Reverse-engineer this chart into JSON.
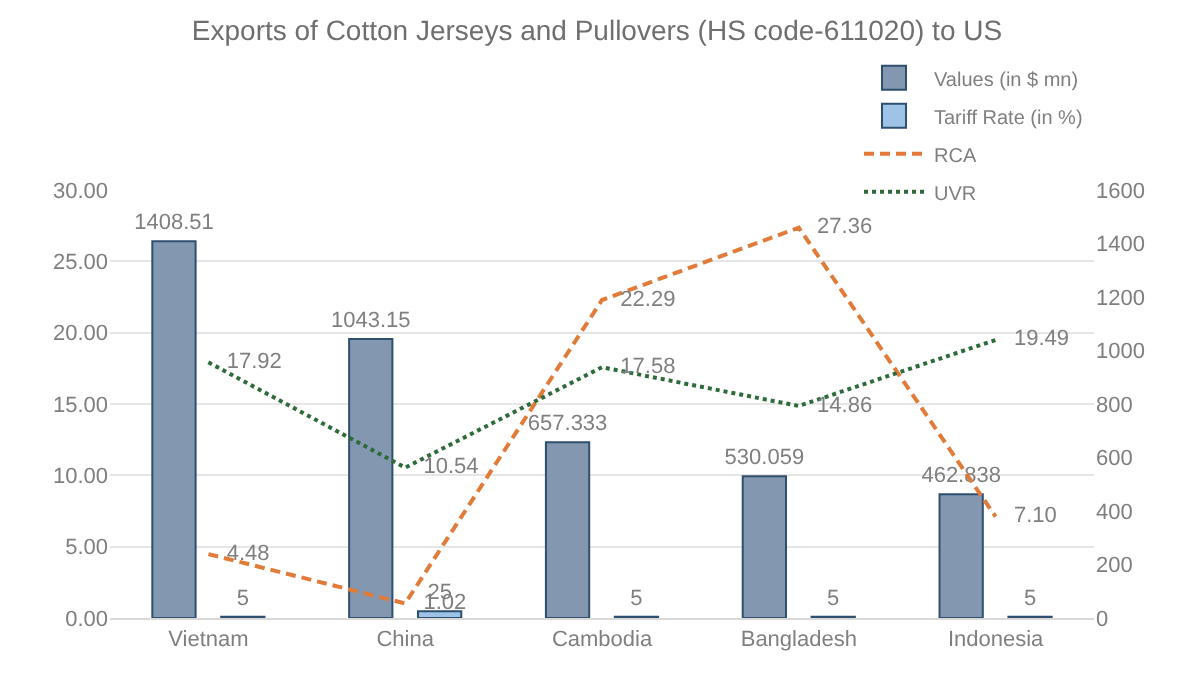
{
  "chart_data": {
    "type": "bar",
    "title": "Exports of Cotton Jerseys and Pullovers (HS code-611020) to US",
    "categories": [
      "Vietnam",
      "China",
      "Cambodia",
      "Bangladesh",
      "Indonesia"
    ],
    "series": [
      {
        "name": "Values (in $ mn)",
        "color": "#8497b0",
        "axis": "y2",
        "values": [
          1408.51,
          1043.15,
          657.333,
          530.059,
          462.838
        ]
      },
      {
        "name": "Tariff Rate (in %)",
        "color": "#9dc3e6",
        "axis": "y2",
        "values": [
          5,
          25,
          5,
          5,
          5
        ]
      },
      {
        "name": "RCA",
        "type": "line",
        "color": "#e07b39",
        "line_style": "dashed",
        "values": [
          4.48,
          1.02,
          22.29,
          27.36,
          7.1
        ],
        "value_labels": [
          "4.48",
          "1.02",
          "22.29",
          "27.36",
          "7.10"
        ]
      },
      {
        "name": "UVR",
        "type": "line",
        "color": "#2e6b3a",
        "line_style": "dotted",
        "values": [
          17.92,
          10.54,
          17.58,
          14.86,
          19.49
        ],
        "value_labels": [
          "17.92",
          "10.54",
          "17.58",
          "14.86",
          "19.49"
        ]
      }
    ],
    "ylim": [
      0,
      30
    ],
    "yticks": [
      {
        "value": 0,
        "label": "0.00"
      },
      {
        "value": 5,
        "label": "5.00"
      },
      {
        "value": 10,
        "label": "10.00"
      },
      {
        "value": 15,
        "label": "15.00"
      },
      {
        "value": 20,
        "label": "20.00"
      },
      {
        "value": 25,
        "label": "25.00"
      },
      {
        "value": 30,
        "label": "30.00"
      }
    ],
    "y2lim": [
      0,
      1600
    ],
    "y2ticks": [
      0,
      200,
      400,
      600,
      800,
      1000,
      1200,
      1400,
      1600
    ],
    "data_labels": true,
    "grid": "y",
    "legend": "top right",
    "marker": "none"
  }
}
